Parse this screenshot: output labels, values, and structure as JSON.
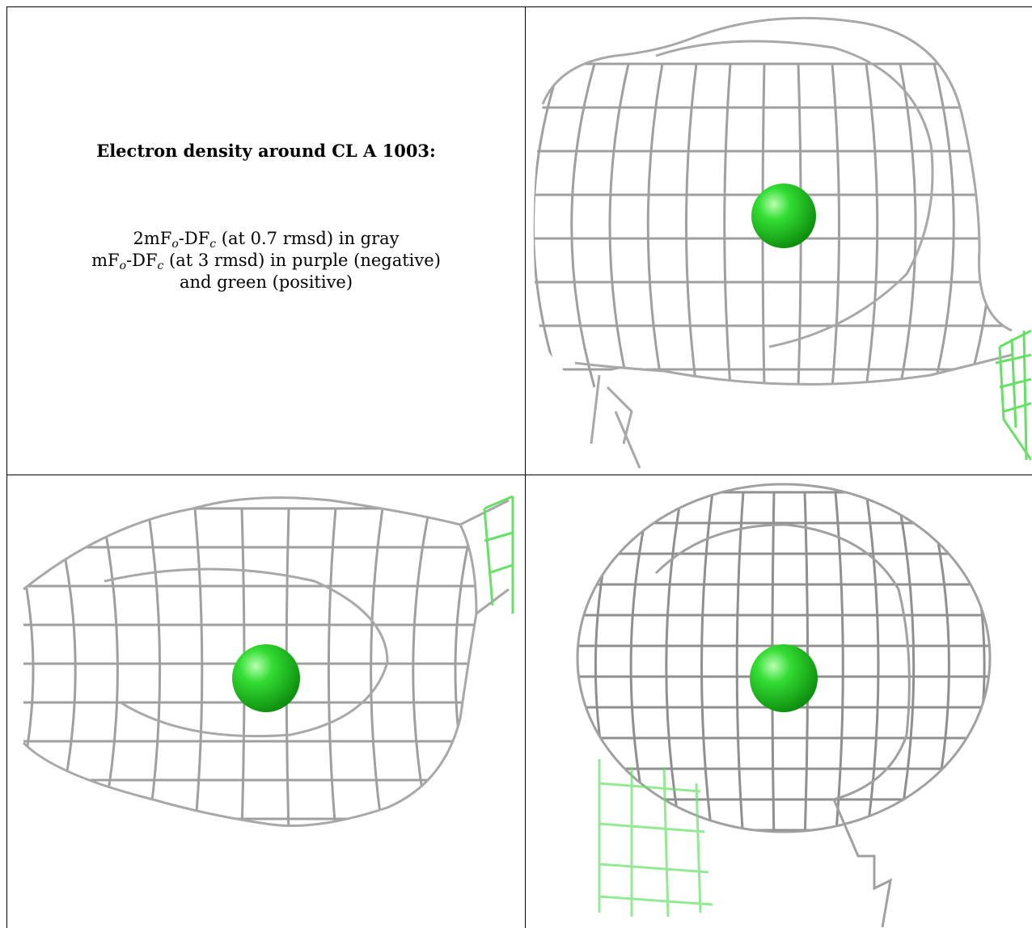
{
  "caption": {
    "title": "Electron density around CL A 1003:",
    "line1": {
      "pre": "2mF",
      "sub1": "o",
      "mid": "-DF",
      "sub2": "c",
      "post": " (at 0.7 rmsd) in gray"
    },
    "line2": {
      "pre": "mF",
      "sub1": "o",
      "mid": "-DF",
      "sub2": "c",
      "post": " (at 3 rmsd) in purple (negative)"
    },
    "line3": "and green (positive)"
  },
  "colors": {
    "mesh_gray": "#9a9a9a",
    "mesh_dark": "#555555",
    "mesh_green": "#66e066",
    "atom_green": "#22cc22",
    "border": "#000000"
  },
  "views": [
    {
      "name": "view-top-right",
      "atom": "CL A 1003"
    },
    {
      "name": "view-bottom-left",
      "atom": "CL A 1003"
    },
    {
      "name": "view-bottom-right",
      "atom": "CL A 1003"
    }
  ]
}
